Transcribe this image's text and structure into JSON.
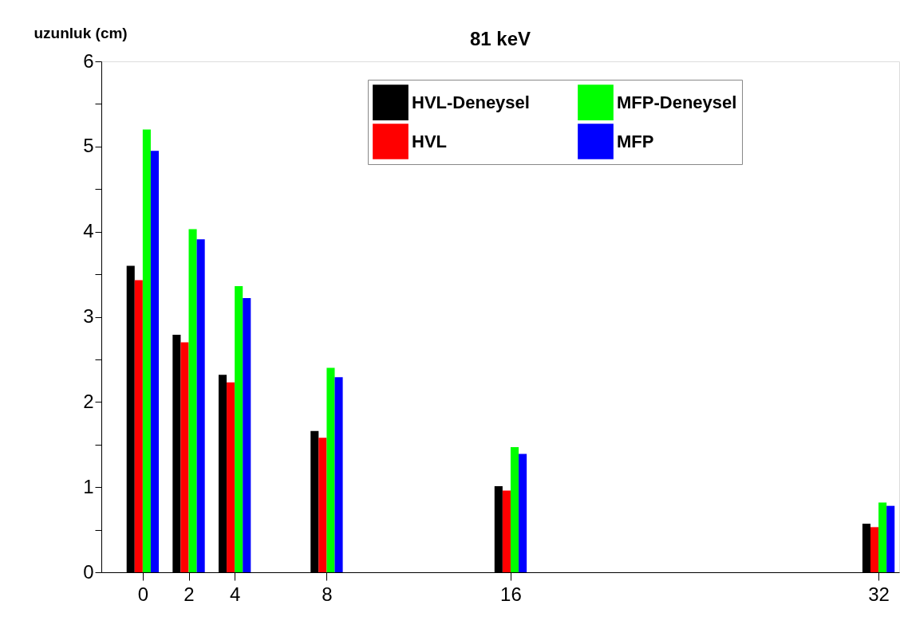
{
  "chart_data": {
    "type": "bar",
    "title": "81 keV",
    "ylabel": "uzunluk (cm)",
    "x": [
      0,
      2,
      4,
      8,
      16,
      32
    ],
    "xlim": [
      -1.8,
      32.9
    ],
    "xticks": [
      0,
      2,
      4,
      8,
      16,
      32
    ],
    "ylim": [
      0,
      6
    ],
    "yticks": [
      0,
      {
        "value": 0.5,
        "label": null
      },
      1,
      {
        "value": 1.5,
        "label": null
      },
      2,
      {
        "value": 2.5,
        "label": null
      },
      3,
      {
        "value": 3.5,
        "label": null
      },
      4,
      {
        "value": 4.5,
        "label": null
      },
      5,
      {
        "value": 5.5,
        "label": null
      },
      6
    ],
    "legend": "top right",
    "series": [
      {
        "name": "HVL-Deneysel",
        "color": "#000000",
        "values": [
          3.6,
          2.79,
          2.32,
          1.66,
          1.01,
          0.57
        ]
      },
      {
        "name": "HVL",
        "color": "#ff0000",
        "values": [
          3.43,
          2.7,
          2.23,
          1.58,
          0.96,
          0.53
        ]
      },
      {
        "name": "MFP-Deneysel",
        "color": "#00ff00",
        "values": [
          5.2,
          4.03,
          3.36,
          2.4,
          1.47,
          0.82
        ]
      },
      {
        "name": "MFP",
        "color": "#0000ff",
        "values": [
          4.95,
          3.91,
          3.22,
          2.29,
          1.39,
          0.78
        ]
      }
    ]
  }
}
